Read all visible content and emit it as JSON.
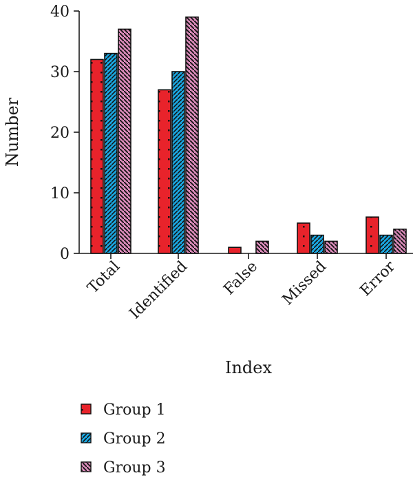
{
  "chart_data": {
    "type": "bar",
    "xlabel": "Index",
    "ylabel": "Number",
    "ylim": [
      0,
      40
    ],
    "yticks": [
      0,
      10,
      20,
      30,
      40
    ],
    "categories": [
      "Total",
      "Identified",
      "False",
      "Missed",
      "Error"
    ],
    "series": [
      {
        "name": "Group 1",
        "values": [
          32,
          27,
          1,
          5,
          6
        ],
        "color": "#e8232b",
        "pattern": "dots"
      },
      {
        "name": "Group 2",
        "values": [
          33,
          30,
          0,
          3,
          3
        ],
        "color": "#1aa6e0",
        "pattern": "diagonal"
      },
      {
        "name": "Group 3",
        "values": [
          37,
          39,
          2,
          2,
          4
        ],
        "color": "#d98ab8",
        "pattern": "zigzag"
      }
    ],
    "grid": false,
    "legend_position": "bottom-left"
  }
}
